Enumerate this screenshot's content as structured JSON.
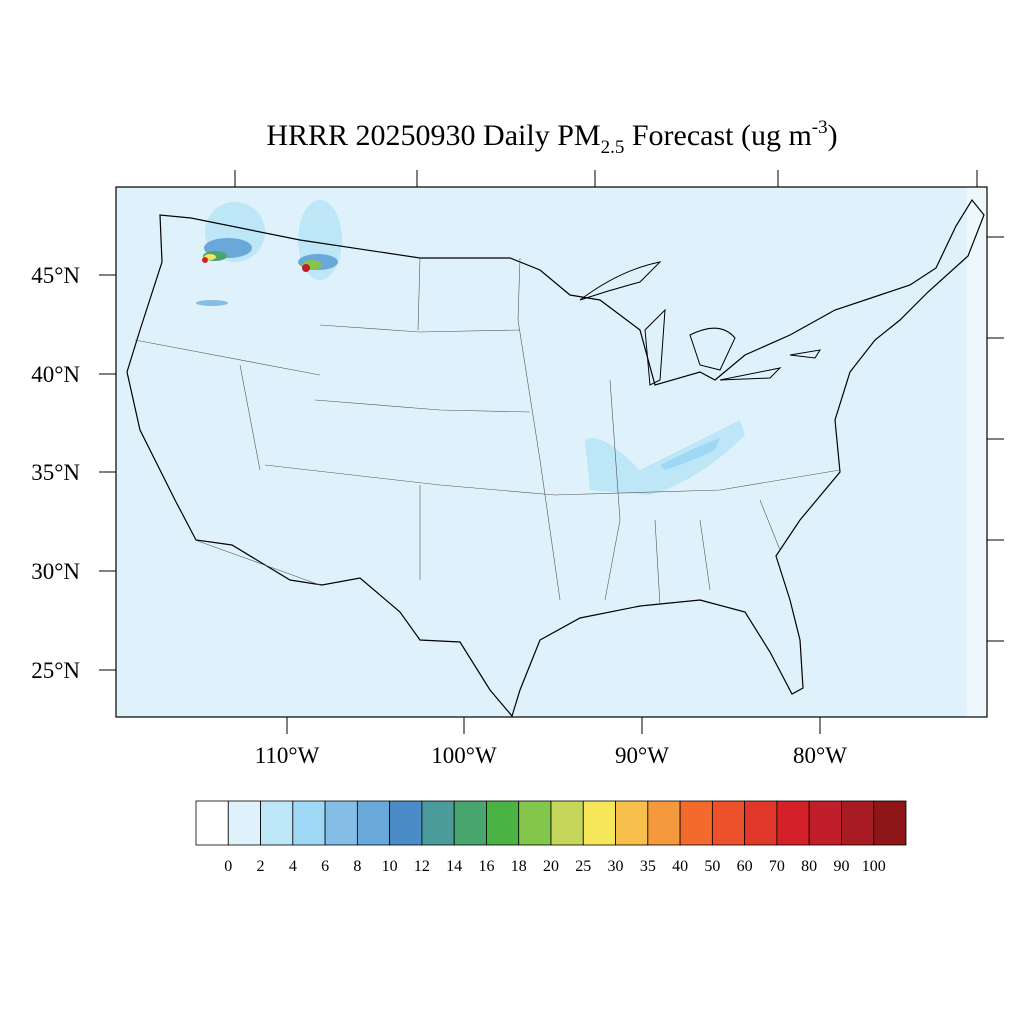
{
  "title": {
    "main": "HRRR 20250930 Daily PM",
    "subscript": "2.5",
    "rest": " Forecast (ug m",
    "superscript": "-3",
    "close": ")"
  },
  "map": {
    "lat_labels": [
      "45°N",
      "40°N",
      "35°N",
      "30°N",
      "25°N"
    ],
    "lon_labels": [
      "110°W",
      "100°W",
      "90°W",
      "80°W"
    ]
  },
  "colorbar": {
    "colors": [
      "#ffffff",
      "#dff2fb",
      "#bde6f7",
      "#9fd8f4",
      "#84bde6",
      "#6aa8da",
      "#4a8bc8",
      "#4a9b9a",
      "#48a56e",
      "#4ab344",
      "#84c54c",
      "#c4d75a",
      "#f5e65a",
      "#f7bf4b",
      "#f5993e",
      "#f26b2d",
      "#ec512c",
      "#e0382a",
      "#d42129",
      "#bf1e2a",
      "#a91b22",
      "#8e1618"
    ],
    "levels": [
      0,
      2,
      4,
      6,
      8,
      10,
      12,
      14,
      16,
      18,
      20,
      25,
      30,
      35,
      40,
      50,
      60,
      70,
      80,
      90,
      100
    ]
  }
}
